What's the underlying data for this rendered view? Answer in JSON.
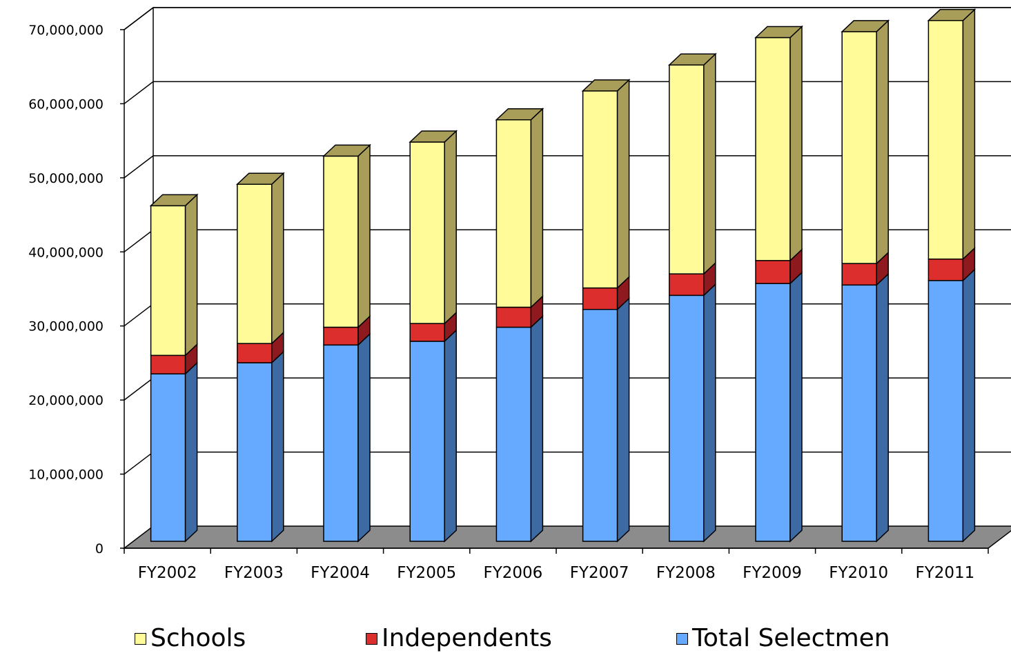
{
  "chart_data": {
    "type": "bar",
    "stacked": true,
    "three_d": true,
    "title": "",
    "xlabel": "",
    "ylabel": "",
    "categories": [
      "FY2002",
      "FY2003",
      "FY2004",
      "FY2005",
      "FY2006",
      "FY2007",
      "FY2008",
      "FY2009",
      "FY2010",
      "FY2011"
    ],
    "ylim": [
      0,
      70000000
    ],
    "yticks": [
      0,
      10000000,
      20000000,
      30000000,
      40000000,
      50000000,
      60000000,
      70000000
    ],
    "ytick_labels": [
      "0",
      "10,000,000",
      "20,000,000",
      "30,000,000",
      "40,000,000",
      "50,000,000",
      "60,000,000",
      "70,000,000"
    ],
    "grid": true,
    "legend_position": "bottom",
    "series": [
      {
        "name": "Total Selectmen",
        "color": "#66AAFF",
        "side_color": "#3D6AA3",
        "values": [
          22600000,
          24100000,
          26500000,
          27000000,
          28900000,
          31300000,
          33200000,
          34800000,
          34600000,
          35200000
        ]
      },
      {
        "name": "Independents",
        "color": "#DD2E2E",
        "side_color": "#8E1A1F",
        "values": [
          2500000,
          2600000,
          2400000,
          2400000,
          2700000,
          2900000,
          2900000,
          3100000,
          2900000,
          2900000
        ]
      },
      {
        "name": "Schools",
        "color": "#FFFB99",
        "side_color": "#A89E5A",
        "values": [
          20200000,
          21500000,
          23100000,
          24500000,
          25300000,
          26600000,
          28200000,
          30100000,
          31300000,
          32200000
        ]
      }
    ],
    "legend": [
      {
        "name": "Schools",
        "color": "#FFFB99"
      },
      {
        "name": "Independents",
        "color": "#DD2E2E"
      },
      {
        "name": "Total Selectmen",
        "color": "#66AAFF"
      }
    ],
    "floor_color": "#8C8C8C"
  }
}
